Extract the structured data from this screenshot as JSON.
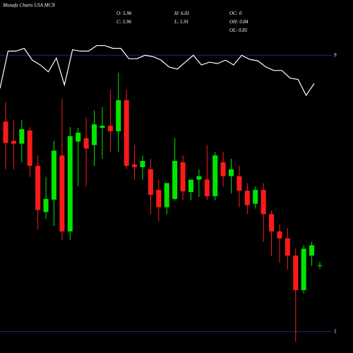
{
  "chart_data": {
    "type": "candlestick",
    "title": "Munafa Charts USA MCN",
    "stats": [
      {
        "label": "O:",
        "value": 5.96
      },
      {
        "label": "C:",
        "value": 5.96
      },
      {
        "label": "H:",
        "value": 6.01
      },
      {
        "label": "L:",
        "value": 5.91
      },
      {
        "label": "OC:",
        "value": 0
      },
      {
        "label": "OH:",
        "value": 0.84
      },
      {
        "label": "OL:",
        "value": 0.85
      }
    ],
    "ylim": [
      4.69,
      9.8
    ],
    "yticks": [
      5,
      9
    ],
    "grid": true,
    "up_color": "#00e600",
    "down_color": "#ff1a1a",
    "line_color": "#ffffff",
    "open": [
      8.04,
      7.76,
      7.72,
      7.91,
      7.4,
      6.73,
      6.91,
      7.55,
      6.45,
      7.75,
      7.8,
      7.7,
      7.95,
      7.98,
      7.9,
      8.35,
      7.42,
      7.38,
      7.35,
      7.05,
      6.8,
      6.92,
      7.45,
      7.02,
      7.2,
      7.2,
      6.96,
      7.45,
      7.25,
      7.25,
      7.04,
      6.85,
      7.05,
      6.7,
      6.45,
      6.35,
      6.1,
      5.6,
      6.1,
      5.96
    ],
    "high": [
      8.32,
      8.06,
      8.06,
      7.96,
      7.55,
      7.24,
      7.76,
      8.37,
      7.96,
      7.95,
      8.1,
      8.2,
      8.25,
      8.5,
      8.75,
      8.5,
      7.7,
      7.55,
      7.5,
      7.2,
      7.1,
      7.8,
      7.55,
      7.2,
      7.35,
      7.7,
      7.6,
      7.6,
      7.5,
      7.4,
      7.15,
      7.1,
      7.15,
      6.75,
      6.55,
      6.5,
      6.2,
      6.25,
      6.3,
      6.01
    ],
    "low": [
      7.35,
      7.35,
      7.45,
      7.24,
      6.48,
      6.63,
      6.53,
      6.33,
      6.33,
      7.1,
      7.1,
      7.4,
      7.5,
      7.6,
      7.6,
      7.35,
      7.2,
      7.2,
      6.7,
      6.6,
      6.7,
      6.9,
      6.9,
      6.9,
      6.95,
      6.9,
      6.9,
      7.1,
      7.0,
      6.8,
      6.7,
      6.78,
      6.3,
      6.1,
      6.0,
      5.9,
      4.85,
      5.55,
      5.95,
      5.91
    ],
    "close": [
      7.73,
      7.72,
      7.93,
      7.4,
      6.76,
      6.92,
      7.62,
      6.45,
      7.83,
      7.88,
      7.65,
      8.0,
      7.98,
      7.9,
      8.35,
      7.4,
      7.38,
      7.47,
      6.98,
      6.8,
      7.15,
      7.47,
      7.03,
      7.2,
      7.25,
      6.96,
      7.55,
      7.25,
      7.35,
      7.04,
      6.83,
      7.05,
      6.7,
      6.45,
      6.35,
      6.1,
      5.6,
      6.2,
      6.25,
      5.96
    ],
    "line": [
      8.52,
      9.06,
      9.06,
      9.1,
      8.93,
      8.86,
      8.76,
      8.96,
      8.57,
      9.08,
      9.06,
      9.06,
      9.14,
      9.14,
      9.1,
      9.1,
      8.95,
      8.95,
      9.0,
      8.98,
      8.93,
      8.83,
      8.8,
      8.9,
      9.0,
      8.86,
      8.9,
      8.88,
      8.93,
      8.86,
      9.0,
      8.94,
      8.92,
      8.83,
      8.78,
      8.78,
      8.67,
      8.65,
      8.42,
      8.59
    ]
  }
}
